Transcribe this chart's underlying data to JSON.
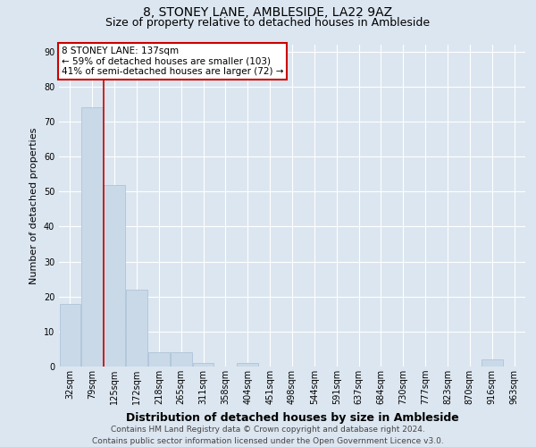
{
  "title": "8, STONEY LANE, AMBLESIDE, LA22 9AZ",
  "subtitle": "Size of property relative to detached houses in Ambleside",
  "xlabel": "Distribution of detached houses by size in Ambleside",
  "ylabel": "Number of detached properties",
  "footnote": "Contains HM Land Registry data © Crown copyright and database right 2024.\nContains public sector information licensed under the Open Government Licence v3.0.",
  "categories": [
    "32sqm",
    "79sqm",
    "125sqm",
    "172sqm",
    "218sqm",
    "265sqm",
    "311sqm",
    "358sqm",
    "404sqm",
    "451sqm",
    "498sqm",
    "544sqm",
    "591sqm",
    "637sqm",
    "684sqm",
    "730sqm",
    "777sqm",
    "823sqm",
    "870sqm",
    "916sqm",
    "963sqm"
  ],
  "values": [
    18,
    74,
    52,
    22,
    4,
    4,
    1,
    0,
    1,
    0,
    0,
    0,
    0,
    0,
    0,
    0,
    0,
    0,
    0,
    2,
    0
  ],
  "bar_color": "#c9d9e8",
  "bar_edge_color": "#adc4d8",
  "red_line_x": 1.5,
  "annotation_line1": "8 STONEY LANE: 137sqm",
  "annotation_line2": "← 59% of detached houses are smaller (103)",
  "annotation_line3": "41% of semi-detached houses are larger (72) →",
  "annotation_box_facecolor": "#ffffff",
  "annotation_box_edgecolor": "#cc0000",
  "red_line_color": "#cc0000",
  "ylim": [
    0,
    92
  ],
  "yticks": [
    0,
    10,
    20,
    30,
    40,
    50,
    60,
    70,
    80,
    90
  ],
  "background_color": "#dce6f0",
  "plot_background": "#dce6f0",
  "title_fontsize": 10,
  "subtitle_fontsize": 9,
  "xlabel_fontsize": 9,
  "ylabel_fontsize": 8,
  "tick_fontsize": 7,
  "annotation_fontsize": 7.5,
  "footnote_fontsize": 6.5
}
